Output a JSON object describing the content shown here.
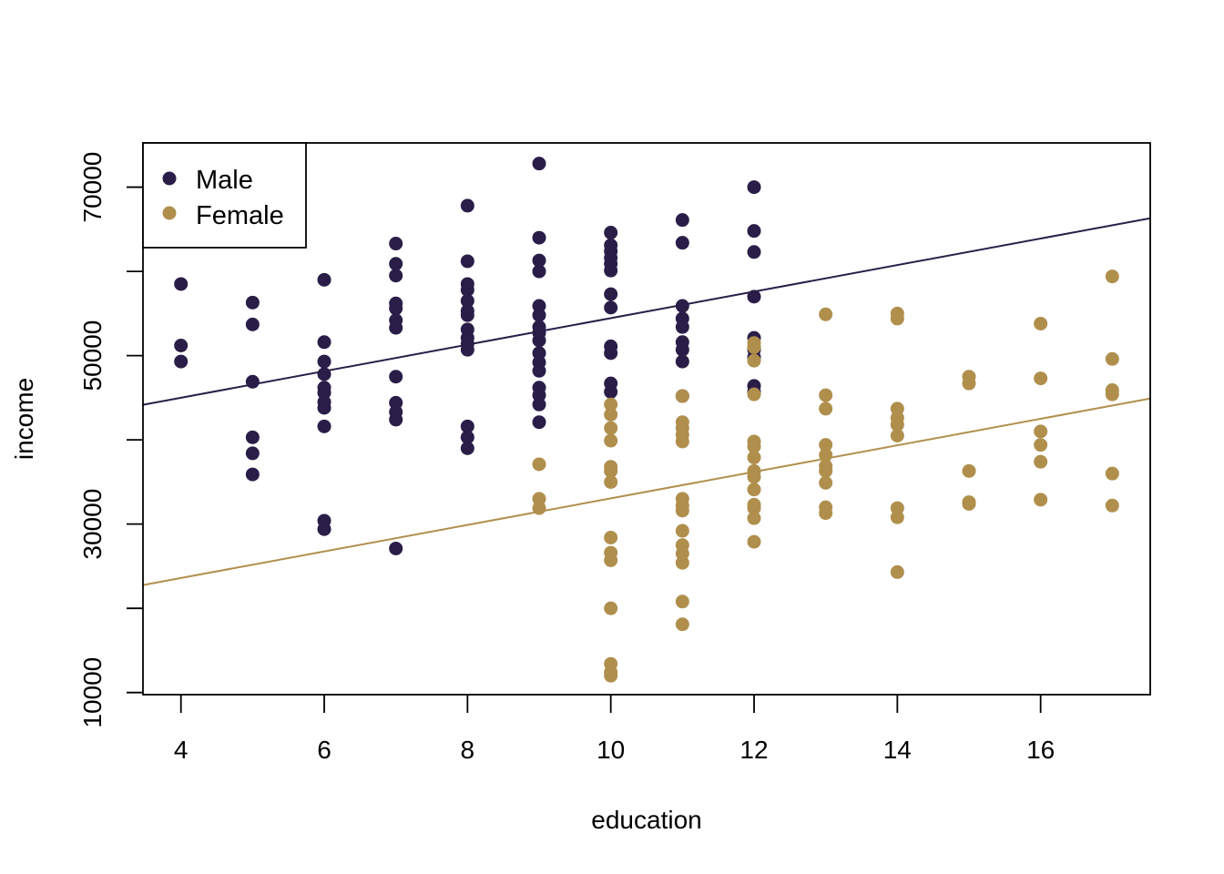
{
  "chart_data": {
    "type": "scatter",
    "title": "",
    "xlabel": "education",
    "ylabel": "income",
    "xlim": [
      3.47,
      17.53
    ],
    "ylim": [
      9750,
      75250
    ],
    "xticks": [
      4,
      6,
      8,
      10,
      12,
      14,
      16
    ],
    "yticks": [
      10000,
      30000,
      50000,
      70000
    ],
    "yticks_minor": [
      20000,
      40000,
      60000
    ],
    "grid": false,
    "legend": {
      "position": "top-left",
      "entries": [
        {
          "label": "Male",
          "color": "#2A1E48"
        },
        {
          "label": "Female",
          "color": "#B08F4D"
        }
      ]
    },
    "series": [
      {
        "name": "Male",
        "color": "#2A1E48",
        "fit_line": {
          "intercept": 38700,
          "slope": 1575
        },
        "points": [
          [
            4,
            58500
          ],
          [
            4,
            51200
          ],
          [
            4,
            49300
          ],
          [
            5,
            56300
          ],
          [
            5,
            53700
          ],
          [
            5,
            46900
          ],
          [
            5,
            40300
          ],
          [
            5,
            38400
          ],
          [
            5,
            35900
          ],
          [
            6,
            59000
          ],
          [
            6,
            51600
          ],
          [
            6,
            49300
          ],
          [
            6,
            47800
          ],
          [
            6,
            46200
          ],
          [
            6,
            45600
          ],
          [
            6,
            44500
          ],
          [
            6,
            43800
          ],
          [
            6,
            41600
          ],
          [
            6,
            30400
          ],
          [
            6,
            29400
          ],
          [
            7,
            63300
          ],
          [
            7,
            60900
          ],
          [
            7,
            59500
          ],
          [
            7,
            56200
          ],
          [
            7,
            55600
          ],
          [
            7,
            54200
          ],
          [
            7,
            53300
          ],
          [
            7,
            47500
          ],
          [
            7,
            44400
          ],
          [
            7,
            43300
          ],
          [
            7,
            42400
          ],
          [
            7,
            27100
          ],
          [
            8,
            67800
          ],
          [
            8,
            61200
          ],
          [
            8,
            58500
          ],
          [
            8,
            57800
          ],
          [
            8,
            56500
          ],
          [
            8,
            55300
          ],
          [
            8,
            54800
          ],
          [
            8,
            53100
          ],
          [
            8,
            52100
          ],
          [
            8,
            51400
          ],
          [
            8,
            50700
          ],
          [
            8,
            41600
          ],
          [
            8,
            40300
          ],
          [
            8,
            39000
          ],
          [
            9,
            72800
          ],
          [
            9,
            64000
          ],
          [
            9,
            61300
          ],
          [
            9,
            60000
          ],
          [
            9,
            55900
          ],
          [
            9,
            54800
          ],
          [
            9,
            53400
          ],
          [
            9,
            52700
          ],
          [
            9,
            51800
          ],
          [
            9,
            50300
          ],
          [
            9,
            49200
          ],
          [
            9,
            48200
          ],
          [
            9,
            46200
          ],
          [
            9,
            45300
          ],
          [
            9,
            44200
          ],
          [
            9,
            42100
          ],
          [
            10,
            64600
          ],
          [
            10,
            63100
          ],
          [
            10,
            62400
          ],
          [
            10,
            61600
          ],
          [
            10,
            60900
          ],
          [
            10,
            60100
          ],
          [
            10,
            57300
          ],
          [
            10,
            55700
          ],
          [
            10,
            51100
          ],
          [
            10,
            50300
          ],
          [
            10,
            46700
          ],
          [
            10,
            45700
          ],
          [
            11,
            66100
          ],
          [
            11,
            63400
          ],
          [
            11,
            55900
          ],
          [
            11,
            54400
          ],
          [
            11,
            53400
          ],
          [
            11,
            51600
          ],
          [
            11,
            50700
          ],
          [
            11,
            49300
          ],
          [
            11,
            45200
          ],
          [
            12,
            70000
          ],
          [
            12,
            64800
          ],
          [
            12,
            62300
          ],
          [
            12,
            57000
          ],
          [
            12,
            52100
          ],
          [
            12,
            50700
          ],
          [
            12,
            49800
          ],
          [
            12,
            46400
          ],
          [
            12,
            45700
          ]
        ]
      },
      {
        "name": "Female",
        "color": "#B08F4D",
        "fit_line": {
          "intercept": 17300,
          "slope": 1575
        },
        "points": [
          [
            9,
            37100
          ],
          [
            9,
            33000
          ],
          [
            9,
            31900
          ],
          [
            10,
            44200
          ],
          [
            10,
            43000
          ],
          [
            10,
            41400
          ],
          [
            10,
            39900
          ],
          [
            10,
            36800
          ],
          [
            10,
            36300
          ],
          [
            10,
            35000
          ],
          [
            10,
            28400
          ],
          [
            10,
            26600
          ],
          [
            10,
            25700
          ],
          [
            10,
            20000
          ],
          [
            10,
            13400
          ],
          [
            10,
            12400
          ],
          [
            10,
            12000
          ],
          [
            11,
            45200
          ],
          [
            11,
            42100
          ],
          [
            11,
            41400
          ],
          [
            11,
            40600
          ],
          [
            11,
            39800
          ],
          [
            11,
            33000
          ],
          [
            11,
            32200
          ],
          [
            11,
            31600
          ],
          [
            11,
            29200
          ],
          [
            11,
            27500
          ],
          [
            11,
            26500
          ],
          [
            11,
            25400
          ],
          [
            11,
            20800
          ],
          [
            11,
            18100
          ],
          [
            12,
            51500
          ],
          [
            12,
            51000
          ],
          [
            12,
            49400
          ],
          [
            12,
            45400
          ],
          [
            12,
            39800
          ],
          [
            12,
            39200
          ],
          [
            12,
            37900
          ],
          [
            12,
            36300
          ],
          [
            12,
            35600
          ],
          [
            12,
            34100
          ],
          [
            12,
            32300
          ],
          [
            12,
            31900
          ],
          [
            12,
            30700
          ],
          [
            12,
            27900
          ],
          [
            13,
            54900
          ],
          [
            13,
            45300
          ],
          [
            13,
            43700
          ],
          [
            13,
            39400
          ],
          [
            13,
            38200
          ],
          [
            13,
            36900
          ],
          [
            13,
            36300
          ],
          [
            13,
            34900
          ],
          [
            13,
            32000
          ],
          [
            13,
            31300
          ],
          [
            14,
            55000
          ],
          [
            14,
            54400
          ],
          [
            14,
            43700
          ],
          [
            14,
            42600
          ],
          [
            14,
            41800
          ],
          [
            14,
            40500
          ],
          [
            14,
            31900
          ],
          [
            14,
            30800
          ],
          [
            14,
            24300
          ],
          [
            15,
            47500
          ],
          [
            15,
            46700
          ],
          [
            15,
            36300
          ],
          [
            15,
            32600
          ],
          [
            15,
            32400
          ],
          [
            16,
            53800
          ],
          [
            16,
            47300
          ],
          [
            16,
            41000
          ],
          [
            16,
            39400
          ],
          [
            16,
            37400
          ],
          [
            16,
            32900
          ],
          [
            17,
            59400
          ],
          [
            17,
            49600
          ],
          [
            17,
            45900
          ],
          [
            17,
            45400
          ],
          [
            17,
            36000
          ],
          [
            17,
            32200
          ]
        ]
      }
    ]
  }
}
